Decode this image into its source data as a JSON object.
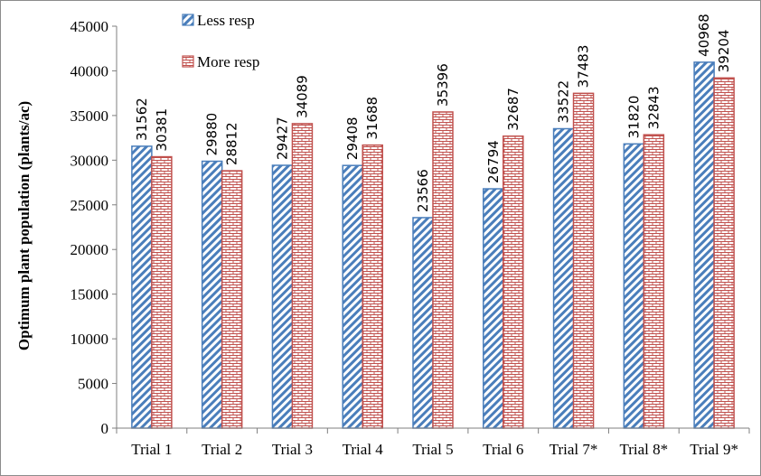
{
  "chart_data": {
    "type": "bar",
    "title": "",
    "xlabel": "",
    "ylabel": "Optimum plant population (plants/ac)",
    "ylim": [
      0,
      45000
    ],
    "ytick_step": 5000,
    "categories": [
      "Trial 1",
      "Trial 2",
      "Trial 3",
      "Trial 4",
      "Trial 5",
      "Trial 6",
      "Trial 7*",
      "Trial 8*",
      "Trial 9*"
    ],
    "series": [
      {
        "name": "Less resp",
        "values": [
          31562,
          29880,
          29427,
          29408,
          23566,
          26794,
          33522,
          31820,
          40968
        ],
        "color": "#4a7ebb",
        "pattern": "diagonal-stripes"
      },
      {
        "name": "More resp",
        "values": [
          30381,
          28812,
          34089,
          31688,
          35396,
          32687,
          37483,
          32843,
          39204
        ],
        "color": "#c0504d",
        "pattern": "brick"
      }
    ],
    "data_labels": true,
    "grid": false,
    "legend_position": "top-left inside"
  }
}
